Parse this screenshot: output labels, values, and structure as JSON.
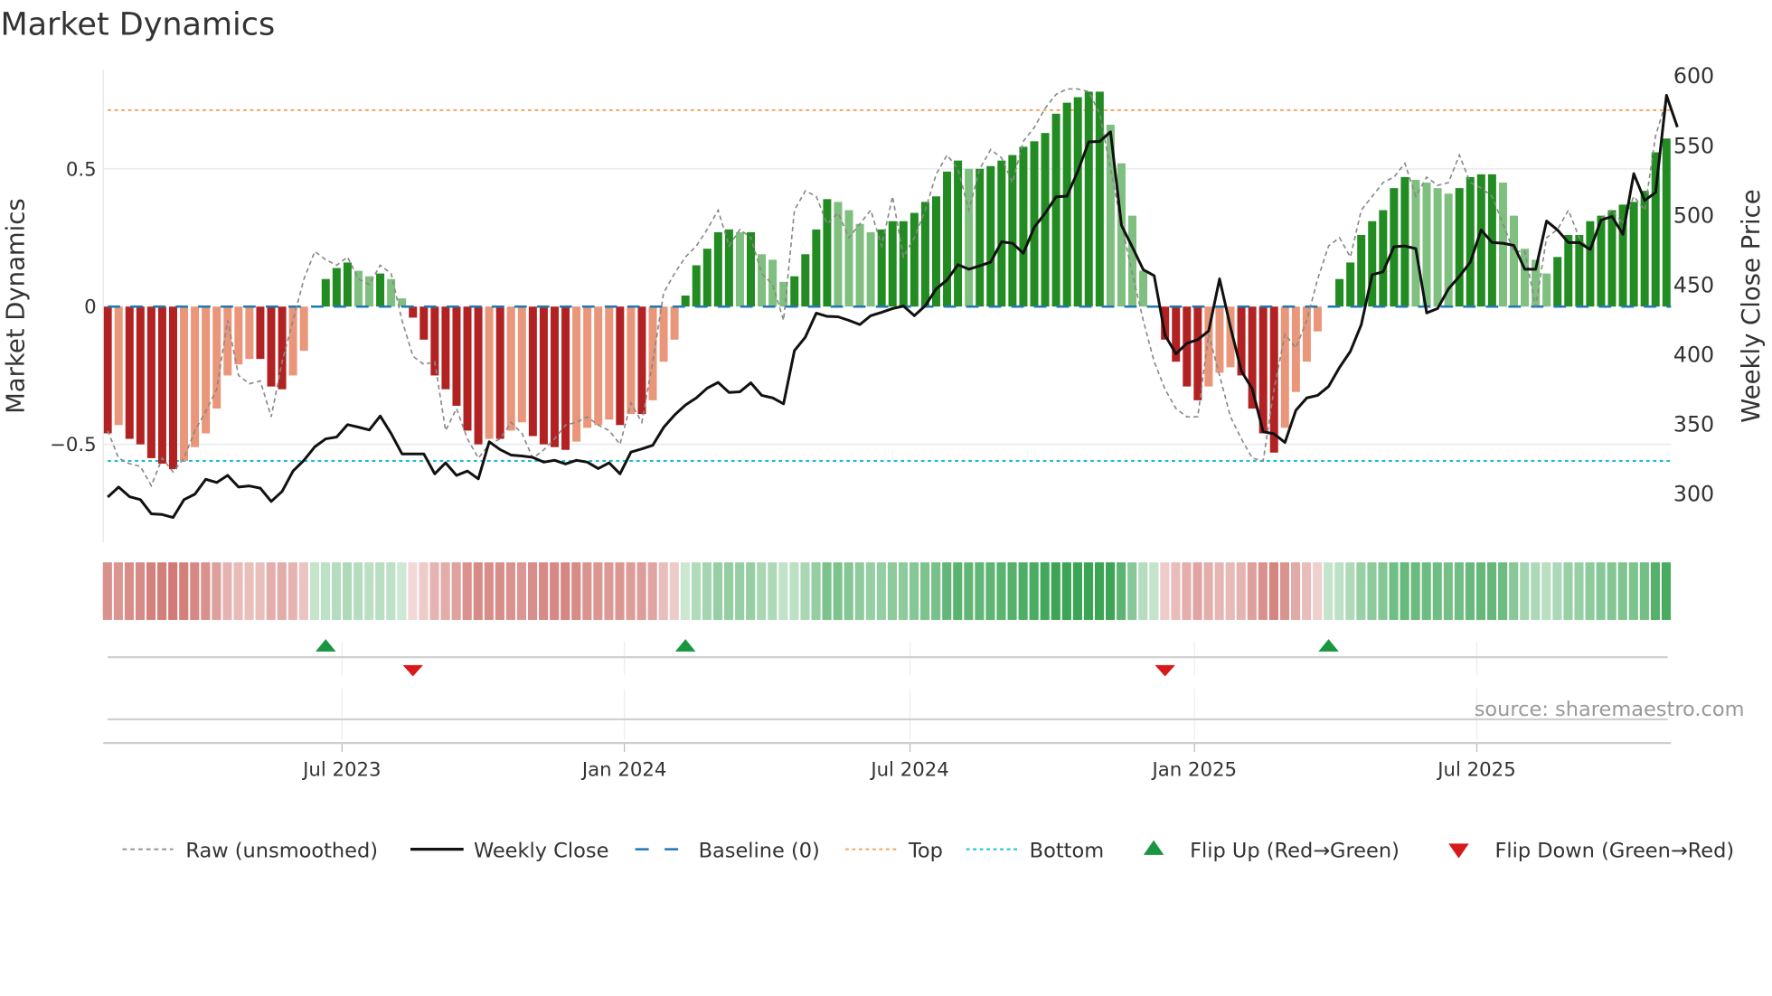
{
  "chart_data": {
    "type": "bar",
    "title": "Market Dynamics",
    "ylabel_left": "Market Dynamics",
    "ylabel_right": "Weekly Close Price",
    "source": "source: sharemaestro.com",
    "ylim_left": [
      -0.72,
      0.84
    ],
    "ylim_right": [
      265,
      615
    ],
    "left_ticks": [
      {
        "value": 0.5,
        "label": "0.5"
      },
      {
        "value": 0,
        "label": "0"
      },
      {
        "value": -0.5,
        "label": "−0.5"
      }
    ],
    "right_ticks": [
      {
        "value": 600,
        "label": "600"
      },
      {
        "value": 550,
        "label": "550"
      },
      {
        "value": 500,
        "label": "500"
      },
      {
        "value": 450,
        "label": "450"
      },
      {
        "value": 400,
        "label": "400"
      },
      {
        "value": 350,
        "label": "350"
      },
      {
        "value": 300,
        "label": "300"
      }
    ],
    "x_ticks": [
      {
        "week_index": 21.5,
        "label": "Jul 2023"
      },
      {
        "week_index": 47.4,
        "label": "Jan 2024"
      },
      {
        "week_index": 73.6,
        "label": "Jul 2024"
      },
      {
        "week_index": 99.7,
        "label": "Jan 2025"
      },
      {
        "week_index": 125.6,
        "label": "Jul 2025"
      }
    ],
    "top_level": 0.713,
    "bottom_level": -0.56,
    "baseline": 0,
    "dynamics": [
      -0.46,
      -0.43,
      -0.48,
      -0.5,
      -0.55,
      -0.57,
      -0.59,
      -0.56,
      -0.51,
      -0.46,
      -0.37,
      -0.25,
      -0.21,
      -0.19,
      -0.19,
      -0.29,
      -0.3,
      -0.25,
      -0.16,
      0,
      0.1,
      0.14,
      0.16,
      0.13,
      0.11,
      0.12,
      0.1,
      0.03,
      -0.04,
      -0.12,
      -0.25,
      -0.3,
      -0.36,
      -0.45,
      -0.5,
      -0.48,
      -0.48,
      -0.45,
      -0.42,
      -0.47,
      -0.5,
      -0.51,
      -0.52,
      -0.49,
      -0.44,
      -0.43,
      -0.41,
      -0.43,
      -0.39,
      -0.39,
      -0.34,
      -0.2,
      -0.12,
      0.04,
      0.15,
      0.21,
      0.27,
      0.28,
      0.27,
      0.27,
      0.19,
      0.17,
      0.09,
      0.11,
      0.19,
      0.28,
      0.39,
      0.38,
      0.35,
      0.3,
      0.27,
      0.28,
      0.31,
      0.31,
      0.34,
      0.38,
      0.4,
      0.49,
      0.53,
      0.5,
      0.5,
      0.51,
      0.53,
      0.55,
      0.58,
      0.6,
      0.63,
      0.7,
      0.74,
      0.76,
      0.78,
      0.78,
      0.66,
      0.52,
      0.33,
      0.13,
      0,
      -0.12,
      -0.2,
      -0.29,
      -0.34,
      -0.29,
      -0.24,
      -0.22,
      -0.25,
      -0.37,
      -0.46,
      -0.53,
      -0.44,
      -0.31,
      -0.2,
      -0.09,
      0,
      0.1,
      0.16,
      0.26,
      0.31,
      0.35,
      0.43,
      0.47,
      0.46,
      0.45,
      0.43,
      0.41,
      0.43,
      0.47,
      0.48,
      0.48,
      0.45,
      0.33,
      0.21,
      0.17,
      0.12,
      0.18,
      0.26,
      0.26,
      0.31,
      0.33,
      0.35,
      0.37,
      0.38,
      0.42,
      0.56,
      0.61
    ],
    "raw": [
      -0.45,
      -0.55,
      -0.57,
      -0.58,
      -0.65,
      -0.55,
      -0.6,
      -0.55,
      -0.45,
      -0.38,
      -0.3,
      -0.05,
      -0.25,
      -0.28,
      -0.27,
      -0.4,
      -0.2,
      -0.05,
      0.1,
      0.2,
      0.17,
      0.15,
      0.18,
      0.1,
      0.08,
      0.15,
      0.12,
      -0.05,
      -0.18,
      -0.21,
      -0.2,
      -0.45,
      -0.37,
      -0.48,
      -0.55,
      -0.5,
      -0.48,
      -0.42,
      -0.46,
      -0.55,
      -0.52,
      -0.48,
      -0.43,
      -0.42,
      -0.4,
      -0.43,
      -0.45,
      -0.5,
      -0.35,
      -0.42,
      -0.2,
      0.05,
      0.12,
      0.18,
      0.22,
      0.28,
      0.35,
      0.22,
      0.28,
      0.25,
      0.12,
      0.08,
      -0.05,
      0.35,
      0.42,
      0.4,
      0.3,
      0.34,
      0.25,
      0.3,
      0.35,
      0.22,
      0.4,
      0.18,
      0.25,
      0.35,
      0.48,
      0.55,
      0.5,
      0.35,
      0.5,
      0.57,
      0.54,
      0.45,
      0.6,
      0.65,
      0.72,
      0.77,
      0.79,
      0.79,
      0.78,
      0.7,
      0.5,
      0.3,
      0.12,
      -0.05,
      -0.2,
      -0.3,
      -0.37,
      -0.4,
      -0.4,
      -0.1,
      -0.25,
      -0.4,
      -0.48,
      -0.55,
      -0.56,
      -0.3,
      -0.1,
      -0.15,
      -0.05,
      0.1,
      0.22,
      0.25,
      0.18,
      0.35,
      0.4,
      0.45,
      0.47,
      0.52,
      0.4,
      0.47,
      0.44,
      0.45,
      0.55,
      0.45,
      0.43,
      0.4,
      0.3,
      0.2,
      0.2,
      0.0,
      0.25,
      0.28,
      0.35,
      0.25,
      0.2,
      0.32,
      0.35,
      0.3,
      0.4,
      0.35,
      0.62,
      0.75
    ],
    "weekly_close": [
      297.4,
      304.6,
      297.7,
      295.6,
      285.4,
      284.9,
      282.8,
      295.6,
      299.5,
      310.2,
      307.9,
      313.0,
      304.6,
      305.4,
      303.8,
      294.3,
      301.5,
      316.1,
      323.8,
      333.5,
      339.2,
      340.5,
      349.4,
      347.6,
      345.6,
      355.6,
      343.0,
      328.4,
      328.4,
      328.4,
      314.1,
      322.0,
      313.0,
      316.1,
      310.5,
      337.1,
      331.5,
      327.6,
      326.9,
      325.9,
      322.5,
      323.8,
      321.2,
      323.8,
      322.5,
      317.9,
      322.0,
      314.1,
      329.7,
      332.0,
      334.6,
      347.4,
      356.3,
      363.5,
      368.6,
      375.6,
      379.7,
      372.5,
      373.0,
      379.4,
      370.4,
      368.6,
      364.3,
      402.5,
      412.2,
      429.4,
      427.1,
      426.8,
      424.2,
      421.2,
      427.6,
      430.0,
      432.7,
      434.5,
      427.6,
      434.7,
      446.8,
      453.2,
      464.2,
      460.9,
      463.4,
      466.0,
      480.6,
      479.6,
      472.4,
      491.1,
      501.1,
      512.9,
      513.4,
      531.3,
      552.3,
      552.6,
      559.5,
      492.4,
      476.8,
      460.6,
      456.3,
      413.5,
      400.2,
      407.8,
      410.4,
      416.6,
      454.0,
      419.4,
      387.9,
      375.0,
      344.3,
      342.8,
      336.6,
      359.7,
      368.6,
      370.4,
      376.8,
      390.4,
      402.0,
      421.2,
      457.0,
      459.1,
      477.1,
      477.6,
      475.7,
      429.6,
      432.7,
      446.8,
      455.8,
      466.0,
      489.1,
      480.1,
      479.6,
      478.0,
      460.9,
      460.9,
      495.5,
      489.1,
      480.1,
      480.1,
      475.0,
      496.2,
      498.8,
      486.0,
      529.5,
      510.3,
      516.0,
      585.7,
      562.9
    ],
    "flip_up_weeks": [
      20,
      53,
      112
    ],
    "flip_down_weeks": [
      28,
      97
    ],
    "legend": [
      {
        "key": "raw",
        "label": "Raw (unsmoothed)"
      },
      {
        "key": "close",
        "label": "Weekly Close"
      },
      {
        "key": "baseline",
        "label": "Baseline (0)"
      },
      {
        "key": "top",
        "label": "Top"
      },
      {
        "key": "bottom",
        "label": "Bottom"
      },
      {
        "key": "flipup",
        "label": "Flip Up (Red→Green)"
      },
      {
        "key": "flipdown",
        "label": "Flip Down (Green→Red)"
      }
    ],
    "legend_position": "bottom",
    "colors": {
      "green_strong": "#228b22",
      "green_weak": "#7fbf7f",
      "red_strong": "#b22222",
      "red_weak": "#e9967a",
      "close": "#111111",
      "raw": "#888888",
      "baseline": "#1f77b4",
      "top": "#f4a460",
      "bottom": "#17becf",
      "flip_up": "#1a9641",
      "flip_down": "#d7191c",
      "heat_green": "#3ca555",
      "heat_red": "#cd6e69"
    }
  }
}
